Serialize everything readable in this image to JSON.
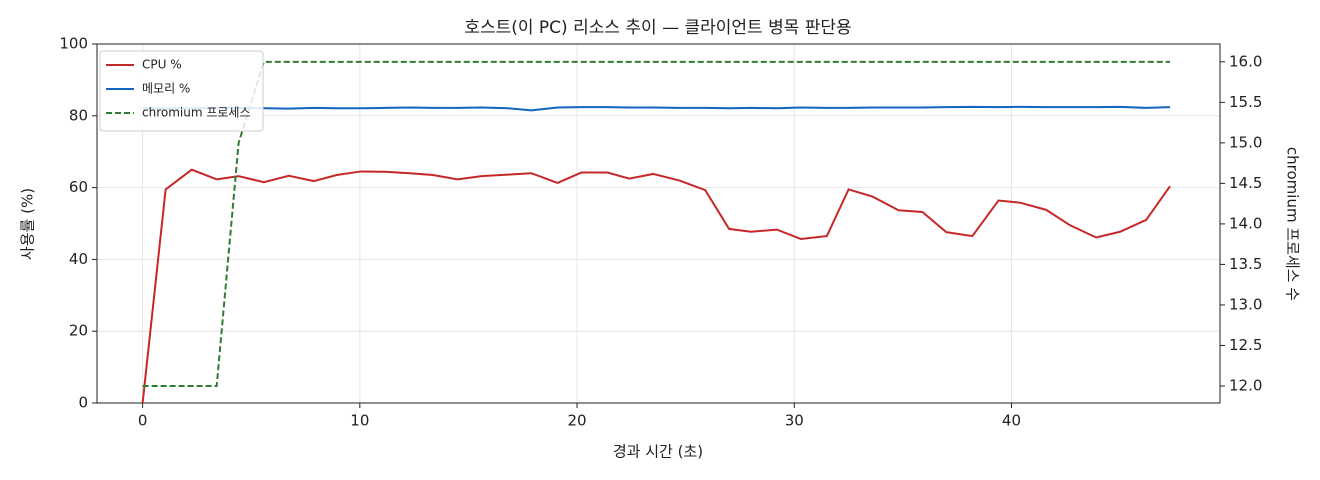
{
  "chart_data": {
    "type": "line",
    "title": "호스트(이 PC) 리소스 추이 — 클라이언트 병목 판단용",
    "x_label": "경과 시간 (초)",
    "y_label": "사용률 (%)",
    "y2_label": "chromium 프로세스 수",
    "x": [
      0,
      1.06,
      2.26,
      3.41,
      4.42,
      5.58,
      6.73,
      7.88,
      8.94,
      10.05,
      11.15,
      12.3,
      13.36,
      14.5,
      15.6,
      16.8,
      17.9,
      19.1,
      20.2,
      21.4,
      22.4,
      23.5,
      24.7,
      25.9,
      27.0,
      28.0,
      29.2,
      30.3,
      31.5,
      32.5,
      33.6,
      34.8,
      35.9,
      37.0,
      38.2,
      39.4,
      40.4,
      41.6,
      42.7,
      43.9,
      45.0,
      46.2,
      47.3
    ],
    "series": [
      {
        "name": "CPU %",
        "color": "#c62828",
        "linestyle": "solid",
        "values": [
          0,
          59.5,
          65,
          62.3,
          63.2,
          61.5,
          63.3,
          61.8,
          63.5,
          64.5,
          64.4,
          64,
          63.5,
          62.3,
          63.2,
          63.6,
          64,
          61.3,
          64.2,
          64.2,
          62.5,
          63.8,
          62,
          59.3,
          48.5,
          47.7,
          48.3,
          45.7,
          46.5,
          59.5,
          57.5,
          53.7,
          53.2,
          47.6,
          46.5,
          56.4,
          55.8,
          53.8,
          49.5,
          46.1,
          47.7,
          51,
          60.4
        ]
      },
      {
        "name": "메모리 %",
        "color": "#1565c0",
        "linestyle": "solid",
        "values": [
          82.0,
          82.0,
          82.1,
          82.1,
          82.2,
          82.1,
          82.0,
          82.2,
          82.1,
          82.1,
          82.2,
          82.3,
          82.2,
          82.2,
          82.3,
          82.1,
          81.5,
          82.3,
          82.4,
          82.4,
          82.3,
          82.3,
          82.2,
          82.2,
          82.1,
          82.2,
          82.1,
          82.3,
          82.2,
          82.2,
          82.3,
          82.3,
          82.3,
          82.4,
          82.5,
          82.4,
          82.5,
          82.4,
          82.4,
          82.4,
          82.5,
          82.2,
          82.4
        ]
      },
      {
        "name": "chromium 프로세스",
        "color": "#2e7d32",
        "linestyle": "dashed",
        "axis": "y2",
        "values": [
          12,
          12,
          12,
          12,
          15,
          16,
          16,
          16,
          16,
          16,
          16,
          16,
          16,
          16,
          16,
          16,
          16,
          16,
          16,
          16,
          16,
          16,
          16,
          16,
          16,
          16,
          16,
          16,
          16,
          16,
          16,
          16,
          16,
          16,
          16,
          16,
          16,
          16,
          16,
          16,
          16,
          16,
          16
        ]
      }
    ],
    "xlim": [
      -2.1,
      49.6
    ],
    "xticks": [
      0,
      10,
      20,
      30,
      40
    ],
    "ylim": [
      0,
      100
    ],
    "yticks": [
      0,
      20,
      40,
      60,
      80,
      100
    ],
    "y2lim": [
      11.79,
      16.22
    ],
    "y2ticks": [
      {
        "value": 12,
        "label": "12.0"
      },
      12.5,
      {
        "value": 13,
        "label": "13.0"
      },
      13.5,
      {
        "value": 14,
        "label": "14.0"
      },
      14.5,
      {
        "value": 15,
        "label": "15.0"
      },
      15.5,
      {
        "value": 16,
        "label": "16.0"
      }
    ],
    "grid": true,
    "legend": "upper left"
  }
}
